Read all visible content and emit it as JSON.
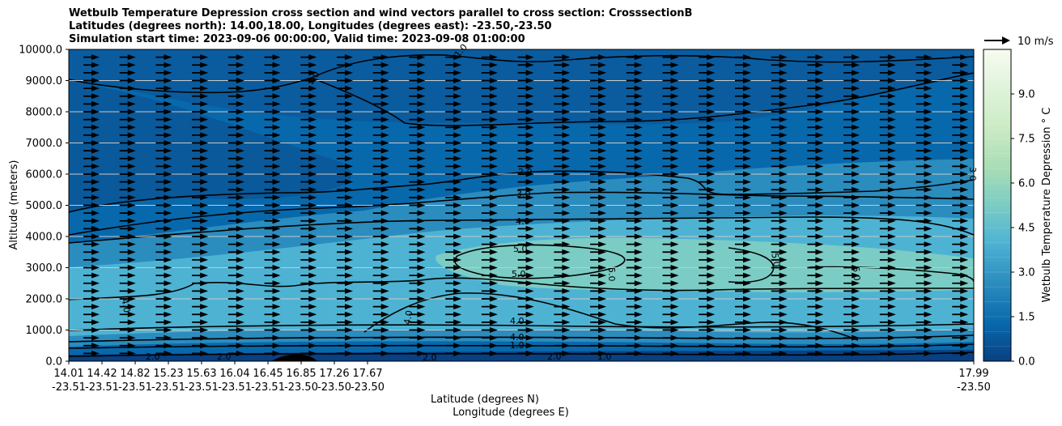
{
  "title_lines": [
    "Wetbulb Temperature Depression cross section and wind vectors parallel to cross section: CrosssectionB",
    "Latitudes (degrees north): 14.00,18.00, Longitudes (degrees east): -23.50,-23.50",
    "Simulation start time: 2023-09-06 00:00:00, Valid time: 2023-09-08 01:00:00"
  ],
  "chart_data": {
    "type": "contour cross-section with wind vectors",
    "ylabel": "Altitude (meters)",
    "xlabel_lat": "Latitude (degrees N)",
    "xlabel_lon": "Longitude (degrees E)",
    "ylim": [
      0,
      10000
    ],
    "y_ticks": [
      "0.0",
      "1000.0",
      "2000.0",
      "3000.0",
      "4000.0",
      "5000.0",
      "6000.0",
      "7000.0",
      "8000.0",
      "9000.0",
      "10000.0"
    ],
    "x_ticks": [
      {
        "lat": "14.01",
        "lon": "-23.51"
      },
      {
        "lat": "14.42",
        "lon": "-23.51"
      },
      {
        "lat": "14.82",
        "lon": "-23.51"
      },
      {
        "lat": "15.23",
        "lon": "-23.51"
      },
      {
        "lat": "15.63",
        "lon": "-23.51"
      },
      {
        "lat": "16.04",
        "lon": "-23.51"
      },
      {
        "lat": "16.45",
        "lon": "-23.51"
      },
      {
        "lat": "16.85",
        "lon": "-23.50"
      },
      {
        "lat": "17.26",
        "lon": "-23.50"
      },
      {
        "lat": "17.67",
        "lon": "-23.50"
      },
      {
        "lat": "17.99",
        "lon": "-23.50"
      }
    ],
    "colorbar": {
      "label": "Wetbulb Temperature Depression $^\\circ$C",
      "label_display": "Wetbulb Temperature Depression ° C",
      "range": [
        0,
        10.5
      ],
      "ticks": [
        "0.0",
        "1.5",
        "3.0",
        "4.5",
        "6.0",
        "7.5",
        "9.0"
      ],
      "colormap": "GnBu_r"
    },
    "contour_labels": [
      "1.0",
      "2.0",
      "3.0",
      "4.0",
      "5.0"
    ],
    "vector_key": {
      "label": "10 m/s",
      "speed_ms": 10
    },
    "wind_rows_altitude_m": [
      250,
      500,
      750,
      1000,
      1250,
      1500,
      1750,
      2000,
      2250,
      2500,
      2750,
      3000,
      3250,
      3500,
      3750,
      4000,
      4250,
      4500,
      4750,
      5000,
      5250,
      5500,
      5750,
      6000,
      6250,
      6500,
      6750,
      7000,
      7250,
      7500,
      7750,
      8000,
      8250,
      8500,
      8750,
      9000,
      9250,
      9500,
      9750
    ]
  }
}
